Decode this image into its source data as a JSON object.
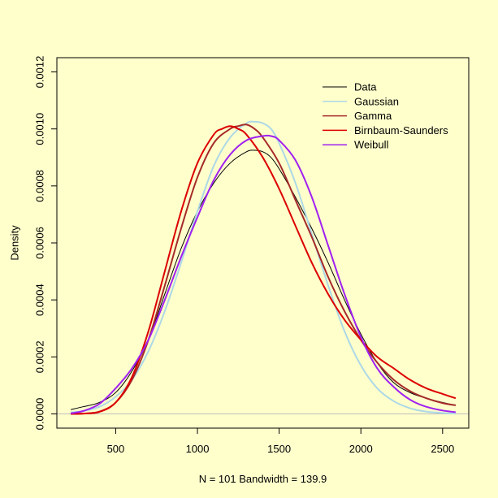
{
  "chart_data": {
    "type": "line",
    "title": "",
    "xlabel": "N = 101   Bandwidth = 139.9",
    "ylabel": "Density",
    "xlim": [
      140,
      2660
    ],
    "ylim": [
      -5e-05,
      0.00125
    ],
    "x_ticks": [
      500,
      1000,
      1500,
      2000,
      2500
    ],
    "x_tick_labels": [
      "500",
      "1000",
      "1500",
      "2000",
      "2500"
    ],
    "y_ticks": [
      0,
      0.0002,
      0.0004,
      0.0006,
      0.0008,
      0.001,
      0.0012
    ],
    "y_tick_labels": [
      "0.0000",
      "0.0002",
      "0.0004",
      "0.0006",
      "0.0008",
      "0.0010",
      "0.0012"
    ],
    "background": "#ffffcc",
    "baseline_color": "#bebebe",
    "legend_position": "top-right",
    "series": [
      {
        "name": "Data",
        "color": "#000000",
        "width": 1,
        "x": [
          225,
          300,
          400,
          500,
          600,
          700,
          800,
          900,
          1000,
          1100,
          1200,
          1300,
          1350,
          1400,
          1450,
          1500,
          1600,
          1700,
          1800,
          1900,
          2000,
          2100,
          2200,
          2300,
          2400,
          2500,
          2580
        ],
        "y": [
          1.5e-05,
          2.5e-05,
          4e-05,
          7.5e-05,
          0.00015,
          0.00026,
          0.00042,
          0.00058,
          0.00071,
          0.00081,
          0.00088,
          0.00092,
          0.000925,
          0.00092,
          0.0009,
          0.00086,
          0.00076,
          0.00065,
          0.00053,
          0.0004,
          0.00028,
          0.00018,
          0.00011,
          7.5e-05,
          5.5e-05,
          4e-05,
          3e-05
        ]
      },
      {
        "name": "Gaussian",
        "color": "#add8e6",
        "width": 2,
        "x": [
          225,
          300,
          400,
          500,
          600,
          700,
          800,
          900,
          1000,
          1100,
          1200,
          1300,
          1350,
          1400,
          1450,
          1500,
          1600,
          1700,
          1800,
          1900,
          2000,
          2100,
          2200,
          2300,
          2400,
          2500,
          2580
        ],
        "y": [
          5e-06,
          1e-05,
          2.5e-05,
          6e-05,
          0.00012,
          0.00022,
          0.00036,
          0.00053,
          0.00071,
          0.00087,
          0.00097,
          0.00102,
          0.001025,
          0.00102,
          0.001,
          0.00095,
          0.00081,
          0.00063,
          0.00045,
          0.00029,
          0.00017,
          9e-05,
          4.5e-05,
          2e-05,
          8e-06,
          3e-06,
          1e-06
        ]
      },
      {
        "name": "Gamma",
        "color": "#a52a2a",
        "width": 2,
        "x": [
          225,
          300,
          400,
          500,
          600,
          700,
          800,
          900,
          1000,
          1100,
          1200,
          1250,
          1300,
          1350,
          1400,
          1500,
          1600,
          1700,
          1800,
          1900,
          2000,
          2100,
          2200,
          2300,
          2400,
          2500,
          2580
        ],
        "y": [
          0,
          1e-06,
          8e-06,
          4e-05,
          0.00012,
          0.00026,
          0.00045,
          0.00065,
          0.00083,
          0.00095,
          0.001,
          0.00101,
          0.001015,
          0.001,
          0.00097,
          0.00088,
          0.00075,
          0.00062,
          0.00048,
          0.00036,
          0.00026,
          0.00018,
          0.00012,
          8e-05,
          5.5e-05,
          3.8e-05,
          3e-05
        ]
      },
      {
        "name": "Birnbaum-Saunders",
        "color": "#dd0000",
        "width": 2,
        "x": [
          225,
          300,
          400,
          500,
          600,
          700,
          800,
          900,
          1000,
          1100,
          1150,
          1200,
          1250,
          1300,
          1400,
          1500,
          1600,
          1700,
          1800,
          1900,
          2000,
          2100,
          2200,
          2300,
          2400,
          2500,
          2580
        ],
        "y": [
          0,
          1e-06,
          7e-06,
          4e-05,
          0.00013,
          0.00029,
          0.0005,
          0.00071,
          0.00088,
          0.00098,
          0.001,
          0.00101,
          0.001,
          0.00098,
          0.0009,
          0.00079,
          0.00066,
          0.00053,
          0.00042,
          0.00033,
          0.00026,
          0.0002,
          0.00016,
          0.00012,
          9e-05,
          7e-05,
          5.5e-05
        ]
      },
      {
        "name": "Weibull",
        "color": "#a020f0",
        "width": 2,
        "x": [
          225,
          300,
          400,
          500,
          600,
          700,
          800,
          900,
          1000,
          1100,
          1200,
          1300,
          1400,
          1450,
          1500,
          1600,
          1700,
          1800,
          1900,
          2000,
          2100,
          2200,
          2300,
          2400,
          2500,
          2580
        ],
        "y": [
          2e-06,
          1e-05,
          3.5e-05,
          9e-05,
          0.00016,
          0.00026,
          0.0004,
          0.00055,
          0.00069,
          0.00082,
          0.00091,
          0.00096,
          0.000975,
          0.000975,
          0.00096,
          0.00089,
          0.00076,
          0.00059,
          0.00042,
          0.00027,
          0.00016,
          9.5e-05,
          5e-05,
          2.5e-05,
          1.2e-05,
          6e-06
        ]
      }
    ]
  }
}
